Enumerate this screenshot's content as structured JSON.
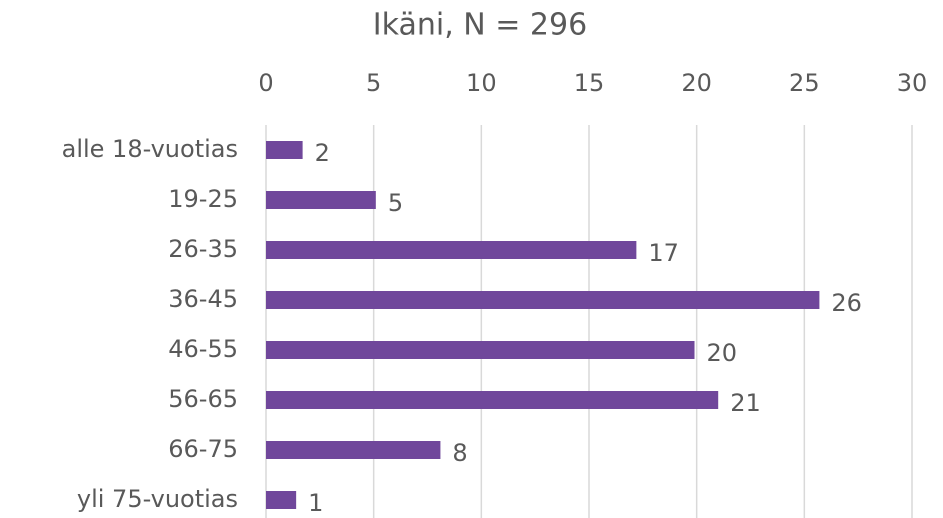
{
  "chart_data": {
    "type": "bar",
    "orientation": "horizontal",
    "title": "Ikäni, N = 296",
    "categories": [
      "alle 18-vuotias",
      "19-25",
      "26-35",
      "36-45",
      "46-55",
      "56-65",
      "66-75",
      "yli 75-vuotias"
    ],
    "values": [
      1.7,
      5.1,
      17.2,
      25.7,
      19.9,
      21.0,
      8.1,
      1.4
    ],
    "value_labels": [
      "2",
      "5",
      "17",
      "26",
      "20",
      "21",
      "8",
      "1"
    ],
    "color": "#70479b",
    "xlim": [
      0,
      30
    ],
    "xticks": [
      0,
      5,
      10,
      15,
      20,
      25,
      30
    ],
    "grid": true
  }
}
